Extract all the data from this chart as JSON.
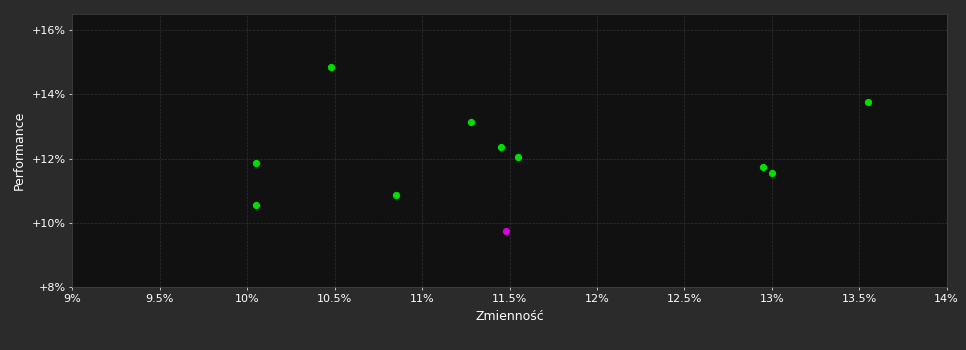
{
  "background_color": "#2b2b2b",
  "plot_bg_color": "#111111",
  "grid_color": "#3a3a3a",
  "text_color": "#ffffff",
  "xlabel": "Zmienność",
  "ylabel": "Performance",
  "xlim": [
    0.09,
    0.14
  ],
  "ylim": [
    0.08,
    0.165
  ],
  "xticks": [
    0.09,
    0.095,
    0.1,
    0.105,
    0.11,
    0.115,
    0.12,
    0.125,
    0.13,
    0.135,
    0.14
  ],
  "yticks": [
    0.08,
    0.1,
    0.12,
    0.14,
    0.16
  ],
  "ytick_labels": [
    "+8%",
    "+10%",
    "+12%",
    "+14%",
    "+16%"
  ],
  "xtick_labels": [
    "9%",
    "9.5%",
    "10%",
    "10.5%",
    "11%",
    "11.5%",
    "12%",
    "12.5%",
    "13%",
    "13.5%",
    "14%"
  ],
  "green_points": [
    [
      0.1005,
      0.1185
    ],
    [
      0.1005,
      0.1055
    ],
    [
      0.1048,
      0.1485
    ],
    [
      0.1085,
      0.1085
    ],
    [
      0.1128,
      0.1315
    ],
    [
      0.1145,
      0.1235
    ],
    [
      0.1155,
      0.1205
    ],
    [
      0.1295,
      0.1175
    ],
    [
      0.13,
      0.1155
    ],
    [
      0.1355,
      0.1375
    ]
  ],
  "magenta_points": [
    [
      0.1148,
      0.0975
    ]
  ],
  "green_color": "#00dd00",
  "magenta_color": "#dd00dd",
  "point_size": 18
}
